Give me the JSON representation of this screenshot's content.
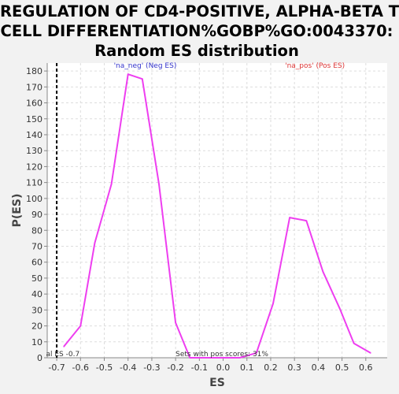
{
  "chart_data": {
    "type": "line",
    "title_lines": [
      "REGULATION OF CD4-POSITIVE, ALPHA-BETA T",
      "CELL DIFFERENTIATION%GOBP%GO:0043370:",
      "Random ES distribution"
    ],
    "xlabel": "ES",
    "ylabel": "P(ES)",
    "xlim": [
      -0.74,
      0.69
    ],
    "ylim": [
      0,
      185
    ],
    "x_ticks": [
      -0.7,
      -0.6,
      -0.5,
      -0.4,
      -0.3,
      -0.2,
      -0.1,
      0.0,
      0.1,
      0.2,
      0.3,
      0.4,
      0.5,
      0.6
    ],
    "x_tick_labels": [
      "-0.7",
      "-0.6",
      "-0.5",
      "-0.4",
      "-0.3",
      "-0.2",
      "-0.1",
      "0.0",
      "0.1",
      "0.2",
      "0.3",
      "0.4",
      "0.5",
      "0.6"
    ],
    "y_ticks": [
      0,
      10,
      20,
      30,
      40,
      50,
      60,
      70,
      80,
      90,
      100,
      110,
      120,
      130,
      140,
      150,
      160,
      170,
      180
    ],
    "y_tick_labels": [
      "0",
      "10",
      "20",
      "30",
      "40",
      "50",
      "60",
      "70",
      "80",
      "90",
      "100",
      "110",
      "120",
      "130",
      "140",
      "150",
      "160",
      "170",
      "180"
    ],
    "grid": true,
    "series": [
      {
        "color": "#ee3ef0",
        "x": [
          -0.67,
          -0.6,
          -0.54,
          -0.47,
          -0.4,
          -0.34,
          -0.27,
          -0.2,
          -0.14,
          -0.07,
          0.0,
          0.07,
          0.14,
          0.21,
          0.28,
          0.35,
          0.42,
          0.49,
          0.55,
          0.62
        ],
        "y": [
          7,
          20,
          72,
          109,
          178,
          175,
          109,
          22,
          0,
          0,
          0,
          0,
          3,
          34,
          88,
          86,
          54,
          31,
          9,
          3
        ]
      }
    ],
    "reference_line": {
      "x": -0.7,
      "style": "dashed",
      "color": "#000000"
    },
    "annotations": [
      {
        "text": "'na_neg' (Neg ES)",
        "color": "#3333cc",
        "x": -0.46,
        "y": 182
      },
      {
        "text": "'na_pos' (Pos ES)",
        "color": "#dd3333",
        "x": 0.26,
        "y": 182
      },
      {
        "text": "al ES -0.7",
        "color": "#333333",
        "x": -0.745,
        "y": 1
      },
      {
        "text": "Sets with pos scores: 31%",
        "color": "#333333",
        "x": -0.2,
        "y": 1
      }
    ]
  }
}
